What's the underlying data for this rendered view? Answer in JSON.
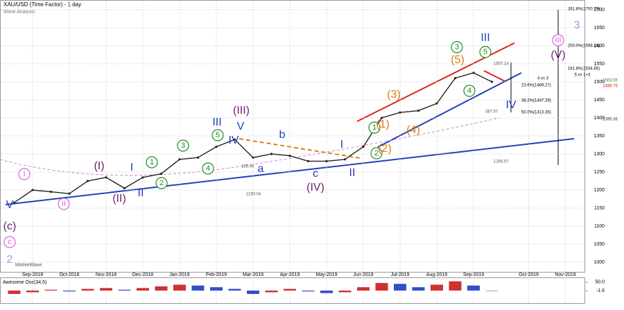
{
  "chart_data": [
    {
      "type": "line",
      "title": "XAU/USD (Time Factor) - 1 day",
      "subtitle": "Wave Analysis",
      "watermark": "MotiveWave",
      "categories": [
        null,
        "Sep-2018",
        null,
        "Oct-2018",
        null,
        "Nov-2018",
        null,
        "Dec-2018",
        null,
        "Jan-2019",
        null,
        "Feb-2019",
        null,
        "Mar-2019",
        null,
        "Apr-2019",
        null,
        "May-2019",
        null,
        "Jun-2019",
        null,
        "Jul-2019",
        null,
        "Aug-2019",
        null,
        "Sep-2019",
        null,
        null,
        "Oct-2019",
        null,
        "Nov-2019",
        null
      ],
      "values": [
        1165,
        1200,
        1195,
        1190,
        1225,
        1235,
        1205,
        1235,
        1245,
        1285,
        1290,
        1320,
        1340,
        1290,
        1300,
        1295,
        1280,
        1280,
        1285,
        1320,
        1400,
        1415,
        1420,
        1440,
        1510,
        1525,
        1500,
        null,
        null,
        null,
        null,
        null
      ],
      "color": "#222222",
      "ylim": [
        977,
        1721
      ],
      "yticks": [
        1000,
        1050,
        1100,
        1150,
        1200,
        1250,
        1300,
        1350,
        1400,
        1450,
        1500,
        1550,
        1600,
        1650,
        1700
      ],
      "grid": true,
      "annotations": [
        {
          "text": "V",
          "color": "#1f3fbf"
        },
        {
          "text": "(c)",
          "color": "#6b1f6b"
        },
        {
          "text": "c",
          "color": "#e05ee0",
          "circled": true
        },
        {
          "text": "2",
          "color": "#b78ce0"
        },
        {
          "text": "I",
          "color": "#e05ee0",
          "circled": true
        },
        {
          "text": "II",
          "color": "#e05ee0",
          "circled": true
        },
        {
          "text": "(I)",
          "color": "#6b1f6b"
        },
        {
          "text": "(II)",
          "color": "#6b1f6b"
        },
        {
          "text": "I",
          "color": "#1f3fbf"
        },
        {
          "text": "II",
          "color": "#1f3fbf"
        },
        {
          "text": "1",
          "color": "#1e8c1e",
          "circled": true
        },
        {
          "text": "2",
          "color": "#1e8c1e",
          "circled": true
        },
        {
          "text": "3",
          "color": "#1e8c1e",
          "circled": true
        },
        {
          "text": "4",
          "color": "#1e8c1e",
          "circled": true
        },
        {
          "text": "5",
          "color": "#1e8c1e",
          "circled": true
        },
        {
          "text": "III",
          "color": "#1f3fbf"
        },
        {
          "text": "(III)",
          "color": "#6b1f6b"
        },
        {
          "text": "V",
          "color": "#1f3fbf"
        },
        {
          "text": "IV",
          "color": "#1f3fbf"
        },
        {
          "text": "a",
          "color": "#1f3fbf"
        },
        {
          "text": "b",
          "color": "#1f3fbf"
        },
        {
          "text": "c",
          "color": "#1f3fbf"
        },
        {
          "text": "(IV)",
          "color": "#6b1f6b"
        },
        {
          "text": "I",
          "color": "#1f3fbf"
        },
        {
          "text": "II",
          "color": "#1f3fbf"
        },
        {
          "text": "1",
          "color": "#1e8c1e",
          "circled": true
        },
        {
          "text": "2",
          "color": "#1e8c1e",
          "circled": true
        },
        {
          "text": "(1)",
          "color": "#e07a10"
        },
        {
          "text": "(2)",
          "color": "#e07a10"
        },
        {
          "text": "(3)",
          "color": "#e07a10"
        },
        {
          "text": "(4)",
          "color": "#e07a10"
        },
        {
          "text": "(5)",
          "color": "#e07a10"
        },
        {
          "text": "3",
          "color": "#1e8c1e",
          "circled": true
        },
        {
          "text": "4",
          "color": "#1e8c1e",
          "circled": true
        },
        {
          "text": "5",
          "color": "#1e8c1e",
          "circled": true
        },
        {
          "text": "III",
          "color": "#1f3fbf"
        },
        {
          "text": "IV",
          "color": "#1f3fbf"
        },
        {
          "text": "III",
          "color": "#e05ee0",
          "circled": true
        },
        {
          "text": "(V)",
          "color": "#6b1f6b"
        },
        {
          "text": "3",
          "color": "#b78ce0"
        },
        {
          "text": "4 vs 3",
          "color": "#000000",
          "small": true
        },
        {
          "text": "5 vs 1+3",
          "color": "#000000",
          "small": true
        },
        {
          "text": "261.8%(1700.79)",
          "color": "#000000",
          "small": true
        },
        {
          "text": "200.0%(1598.24)",
          "color": "#000000",
          "small": true
        },
        {
          "text": "161.8%(1534.85)",
          "color": "#000000",
          "small": true
        },
        {
          "text": "23.6%(1469.27)",
          "color": "#000000",
          "small": true
        },
        {
          "text": "38.2%(1447.29)",
          "color": "#000000",
          "small": true
        },
        {
          "text": "50.0%(1413.36)",
          "color": "#000000",
          "small": true
        },
        {
          "text": "1557.14",
          "color": "#555555",
          "small": true
        },
        {
          "text": "387.57",
          "color": "#555555",
          "small": true
        },
        {
          "text": "1269.57",
          "color": "#555555",
          "small": true
        },
        {
          "text": "1190.04",
          "color": "#555555",
          "small": true
        },
        {
          "text": "165.94",
          "color": "#555555",
          "small": true
        },
        {
          "text": "1503.05",
          "color": "#1e8c1e",
          "small": true
        },
        {
          "text": "1488.75",
          "color": "#d02020",
          "small": true
        },
        {
          "text": "1395.36",
          "color": "#333333",
          "small": true
        }
      ]
    },
    {
      "type": "bar",
      "title": "Awesome Osc(34,5)",
      "values": [
        -20,
        -10,
        5,
        -5,
        10,
        15,
        5,
        15,
        25,
        35,
        30,
        20,
        10,
        -20,
        -10,
        10,
        -5,
        -15,
        -10,
        20,
        45,
        40,
        20,
        35,
        55,
        30,
        -1.6,
        null,
        null,
        null,
        null,
        null
      ],
      "up_color": "#d03030",
      "down_color": "#3050c8",
      "ylim": [
        -70,
        70
      ],
      "yticks": [
        {
          "value": 50,
          "label": "50.0"
        },
        {
          "value": -1.6,
          "label": "-1.6"
        }
      ]
    }
  ]
}
